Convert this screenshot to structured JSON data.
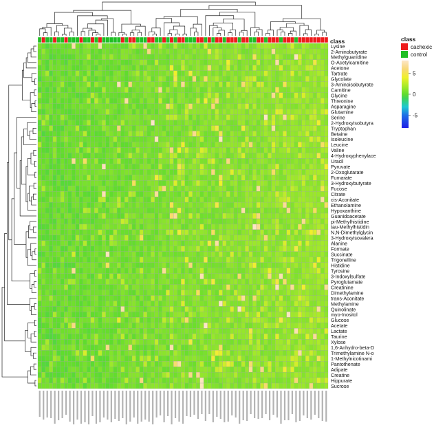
{
  "chart_data": {
    "type": "heatmap",
    "class_bar_label": "class",
    "legend": {
      "title": "class",
      "entries": [
        {
          "name": "cachexic",
          "color": "#ee1c1c"
        },
        {
          "name": "control",
          "color": "#1fbf24"
        }
      ]
    },
    "color_scale": {
      "ticks": [
        5,
        0,
        -5
      ],
      "range": [
        -8,
        8
      ],
      "stops": [
        {
          "value": -8,
          "color": "#1e1ee6"
        },
        {
          "value": -5,
          "color": "#1e6ee6"
        },
        {
          "value": -3,
          "color": "#1ec8d2"
        },
        {
          "value": -1,
          "color": "#3cd25a"
        },
        {
          "value": 0,
          "color": "#5fdc2d"
        },
        {
          "value": 2,
          "color": "#aaea2a"
        },
        {
          "value": 4,
          "color": "#f0f02a"
        },
        {
          "value": 6,
          "color": "#f8d878"
        },
        {
          "value": 8,
          "color": "#fde6c8"
        }
      ]
    },
    "rows": [
      "Lysine",
      "2-Aminobutyrate",
      "Methylguanidine",
      "O-Acetylcarnitine",
      "Acetone",
      "Tartrate",
      "Glycolate",
      "3-Aminoisobutyrate",
      "Carnitine",
      "Glycine",
      "Threonine",
      "Asparagine",
      "Glutamine",
      "Serine",
      "2-Hydroxyisobutyra",
      "Tryptophan",
      "Betaine",
      "Isoleucine",
      "Leucine",
      "Valine",
      "4-Hydroxyphenylace",
      "Uracil",
      "Pyruvate",
      "2-Oxoglutarate",
      "Fumarate",
      "3-Hydroxybutyrate",
      "Fucose",
      "Citrate",
      "cis-Aconitate",
      "Ethanolamine",
      "Hypoxanthine",
      "Guanidoacetate",
      "pi-Methylhistidine",
      "tau-Methylhistidin",
      "N,N-Dimethylglycin",
      "3-Hydroxyisovalera",
      "Alanine",
      "Formate",
      "Succinate",
      "Trigonelline",
      "Histidine",
      "Tyrosine",
      "3-Indoxylsulfate",
      "Pyroglutamate",
      "Creatinine",
      "Dimethylamine",
      "trans-Aconitate",
      "Methylamine",
      "Quinolinate",
      "myo-Inositol",
      "Glucose",
      "Acetate",
      "Lactate",
      "Taurine",
      "Xylose",
      "1,6-Anhydro-beta-D",
      "Trimethylamine N-o",
      "1-Methylnicotinami",
      "Pantothenate",
      "Adipate",
      "Creatine",
      "Hippurate",
      "Sucrose"
    ],
    "columns_count": 77,
    "column_classes": "GRGGRGGRGGGRGGRGRGGGGGRGRRGGGRRGGRGRGRRGGGRRGRGRRGRRRGRRGGRRGRRRGRRRGRRRRRRRR",
    "values_note": "z-scores per metabolite; predominantly 0 to 2 with sparse highs up to 8"
  }
}
